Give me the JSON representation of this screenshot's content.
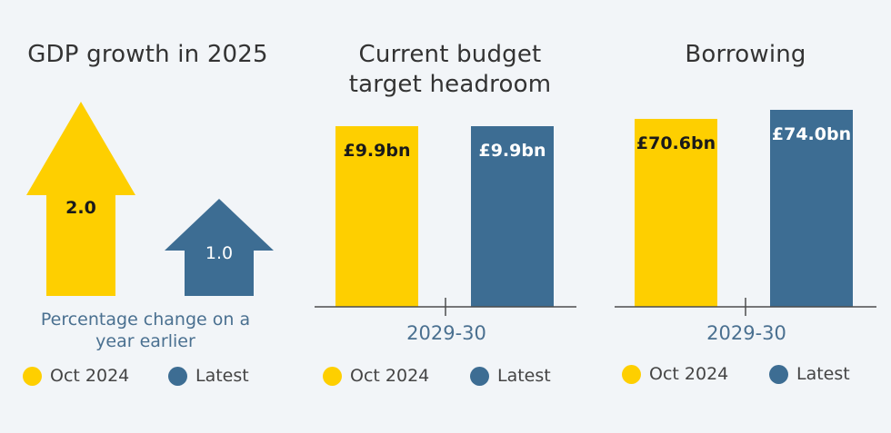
{
  "colors": {
    "oct": "#fecf00",
    "latest": "#3d6d93",
    "axis": "#4d4d4d"
  },
  "legend": {
    "oct_label": "Oct 2024",
    "latest_label": "Latest"
  },
  "chart_data": [
    {
      "type": "bar",
      "title": "GDP growth in 2025",
      "subtitle": "Percentage change on a year earlier",
      "series": [
        {
          "name": "Oct 2024",
          "values": [
            2.0
          ],
          "labels": [
            "2.0"
          ]
        },
        {
          "name": "Latest",
          "values": [
            1.0
          ],
          "labels": [
            "1.0"
          ]
        }
      ],
      "legend_position": "bottom"
    },
    {
      "type": "bar",
      "title": "Current budget target headroom",
      "categories": [
        "2029-30"
      ],
      "series": [
        {
          "name": "Oct 2024",
          "values": [
            9.9
          ],
          "labels": [
            "£9.9bn"
          ]
        },
        {
          "name": "Latest",
          "values": [
            9.9
          ],
          "labels": [
            "£9.9bn"
          ]
        }
      ],
      "legend_position": "bottom"
    },
    {
      "type": "bar",
      "title": "Borrowing",
      "categories": [
        "2029-30"
      ],
      "series": [
        {
          "name": "Oct 2024",
          "values": [
            70.6
          ],
          "labels": [
            "£70.6bn"
          ]
        },
        {
          "name": "Latest",
          "values": [
            74.0
          ],
          "labels": [
            "£74.0bn"
          ]
        }
      ],
      "legend_position": "bottom"
    }
  ]
}
